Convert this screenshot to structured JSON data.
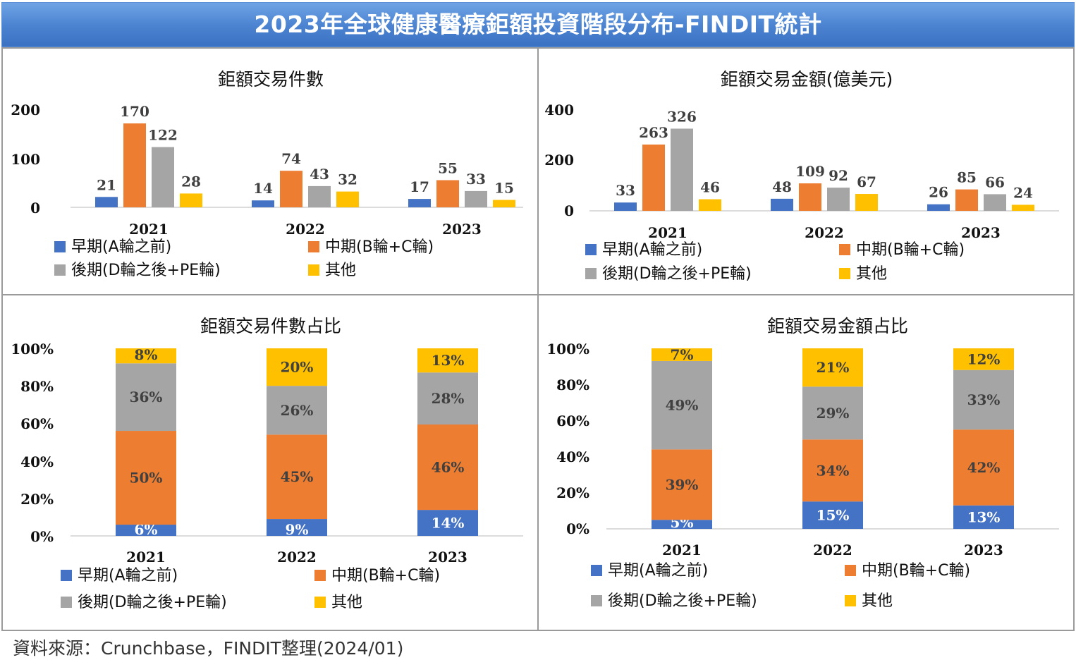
{
  "header": {
    "title": "2023年全球健康醫療鉅額投資階段分布-FINDIT統計"
  },
  "source": "資料來源：Crunchbase，FINDIT整理(2024/01)",
  "colors": {
    "early": "#4472c4",
    "mid": "#ed7d31",
    "late": "#a5a5a5",
    "other": "#ffc000",
    "header": "#4a82d0"
  },
  "chart_data": [
    {
      "type": "bar",
      "title": "鉅額交易件數",
      "categories": [
        "2021",
        "2022",
        "2023"
      ],
      "ylim": [
        0,
        200
      ],
      "yticks": [
        "200",
        "100",
        "0"
      ],
      "series": [
        {
          "name": "早期(A輪之前)",
          "values": [
            21,
            14,
            17
          ]
        },
        {
          "name": "中期(B輪+C輪)",
          "values": [
            170,
            74,
            55
          ]
        },
        {
          "name": "後期(D輪之後+PE輪)",
          "values": [
            122,
            43,
            33
          ]
        },
        {
          "name": "其他",
          "values": [
            28,
            32,
            15
          ]
        }
      ]
    },
    {
      "type": "bar",
      "title": "鉅額交易金額(億美元)",
      "categories": [
        "2021",
        "2022",
        "2023"
      ],
      "ylim": [
        0,
        400
      ],
      "yticks": [
        "400",
        "200",
        "0"
      ],
      "series": [
        {
          "name": "早期(A輪之前)",
          "values": [
            33,
            48,
            26
          ]
        },
        {
          "name": "中期(B輪+C輪)",
          "values": [
            263,
            109,
            85
          ]
        },
        {
          "name": "後期(D輪之後+PE輪)",
          "values": [
            326,
            92,
            66
          ]
        },
        {
          "name": "其他",
          "values": [
            46,
            67,
            24
          ]
        }
      ]
    },
    {
      "type": "bar",
      "stacked": "percent",
      "title": "鉅額交易件數占比",
      "categories": [
        "2021",
        "2022",
        "2023"
      ],
      "ylim": [
        0,
        100
      ],
      "yticks": [
        "100%",
        "80%",
        "60%",
        "40%",
        "20%",
        "0%"
      ],
      "series": [
        {
          "name": "早期(A輪之前)",
          "values": [
            6,
            9,
            14
          ],
          "labels": [
            "6%",
            "9%",
            "14%"
          ]
        },
        {
          "name": "中期(B輪+C輪)",
          "values": [
            50,
            45,
            46
          ],
          "labels": [
            "50%",
            "45%",
            "46%"
          ]
        },
        {
          "name": "後期(D輪之後+PE輪)",
          "values": [
            36,
            26,
            28
          ],
          "labels": [
            "36%",
            "26%",
            "28%"
          ]
        },
        {
          "name": "其他",
          "values": [
            8,
            20,
            13
          ],
          "labels": [
            "8%",
            "20%",
            "13%"
          ]
        }
      ]
    },
    {
      "type": "bar",
      "stacked": "percent",
      "title": "鉅額交易金額占比",
      "categories": [
        "2021",
        "2022",
        "2023"
      ],
      "ylim": [
        0,
        100
      ],
      "yticks": [
        "100%",
        "80%",
        "60%",
        "40%",
        "20%",
        "0%"
      ],
      "series": [
        {
          "name": "早期(A輪之前)",
          "values": [
            5,
            15,
            13
          ],
          "labels": [
            "5%",
            "15%",
            "13%"
          ]
        },
        {
          "name": "中期(B輪+C輪)",
          "values": [
            39,
            34,
            42
          ],
          "labels": [
            "39%",
            "34%",
            "42%"
          ]
        },
        {
          "name": "後期(D輪之後+PE輪)",
          "values": [
            49,
            29,
            33
          ],
          "labels": [
            "49%",
            "29%",
            "33%"
          ]
        },
        {
          "name": "其他",
          "values": [
            7,
            21,
            12
          ],
          "labels": [
            "7%",
            "21%",
            "12%"
          ]
        }
      ]
    }
  ]
}
